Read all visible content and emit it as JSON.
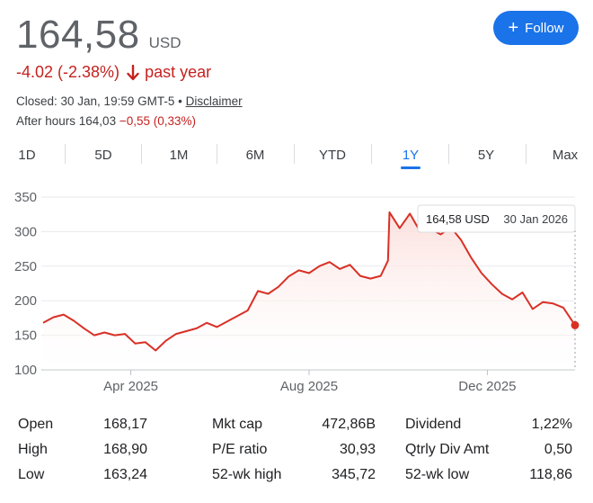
{
  "header": {
    "price": "164,58",
    "currency": "USD",
    "change": "-4.02 (-2.38%)",
    "change_period": "past year",
    "change_icon": "arrow-down-icon",
    "closed_text": "Closed: 30 Jan, 19:59 GMT-5 • ",
    "disclaimer": "Disclaimer",
    "after_hours_label": "After hours 164,03 ",
    "after_hours_change": "−0,55 (0,33%)",
    "follow_label": "Follow",
    "negative_color": "#c5221f",
    "accent_color": "#1a73e8"
  },
  "tabs": [
    "1D",
    "5D",
    "1M",
    "6M",
    "YTD",
    "1Y",
    "5Y",
    "Max"
  ],
  "active_tab": "1Y",
  "tooltip": {
    "price": "164,58 USD",
    "date": "30 Jan 2026"
  },
  "stats": [
    {
      "label": "Open",
      "value": "168,17"
    },
    {
      "label": "High",
      "value": "168,90"
    },
    {
      "label": "Low",
      "value": "163,24"
    },
    {
      "label": "Mkt cap",
      "value": "472,86B"
    },
    {
      "label": "P/E ratio",
      "value": "30,93"
    },
    {
      "label": "52-wk high",
      "value": "345,72"
    },
    {
      "label": "Dividend",
      "value": "1,22%"
    },
    {
      "label": "Qtrly Div Amt",
      "value": "0,50"
    },
    {
      "label": "52-wk low",
      "value": "118,86"
    }
  ],
  "chart_data": {
    "type": "area",
    "title": "",
    "xlabel": "",
    "ylabel": "",
    "ylim": [
      100,
      350
    ],
    "y_ticks": [
      "100",
      "150",
      "200",
      "250",
      "300",
      "350"
    ],
    "x_ticks": [
      "Apr 2025",
      "Aug 2025",
      "Dec 2025"
    ],
    "x_tick_dates": [
      "2025-04-01",
      "2025-08-01",
      "2025-12-01"
    ],
    "x_range": [
      "2025-01-31",
      "2026-01-30"
    ],
    "grid": true,
    "line_color": "#d93025",
    "series": [
      {
        "values": [
          [
            "2025-01-31",
            168
          ],
          [
            "2025-02-07",
            176
          ],
          [
            "2025-02-14",
            180
          ],
          [
            "2025-02-21",
            171
          ],
          [
            "2025-02-28",
            160
          ],
          [
            "2025-03-07",
            150
          ],
          [
            "2025-03-14",
            154
          ],
          [
            "2025-03-21",
            150
          ],
          [
            "2025-03-28",
            152
          ],
          [
            "2025-04-04",
            138
          ],
          [
            "2025-04-11",
            140
          ],
          [
            "2025-04-18",
            128
          ],
          [
            "2025-04-25",
            142
          ],
          [
            "2025-05-02",
            152
          ],
          [
            "2025-05-09",
            156
          ],
          [
            "2025-05-16",
            160
          ],
          [
            "2025-05-23",
            168
          ],
          [
            "2025-05-30",
            162
          ],
          [
            "2025-06-06",
            170
          ],
          [
            "2025-06-13",
            178
          ],
          [
            "2025-06-20",
            186
          ],
          [
            "2025-06-27",
            214
          ],
          [
            "2025-07-04",
            210
          ],
          [
            "2025-07-11",
            220
          ],
          [
            "2025-07-18",
            235
          ],
          [
            "2025-07-25",
            244
          ],
          [
            "2025-08-01",
            240
          ],
          [
            "2025-08-08",
            250
          ],
          [
            "2025-08-15",
            256
          ],
          [
            "2025-08-22",
            246
          ],
          [
            "2025-08-29",
            252
          ],
          [
            "2025-09-05",
            236
          ],
          [
            "2025-09-12",
            232
          ],
          [
            "2025-09-19",
            236
          ],
          [
            "2025-09-24",
            258
          ],
          [
            "2025-09-25",
            328
          ],
          [
            "2025-10-02",
            305
          ],
          [
            "2025-10-09",
            326
          ],
          [
            "2025-10-16",
            300
          ],
          [
            "2025-10-23",
            304
          ],
          [
            "2025-10-30",
            296
          ],
          [
            "2025-11-06",
            306
          ],
          [
            "2025-11-13",
            288
          ],
          [
            "2025-11-20",
            262
          ],
          [
            "2025-11-27",
            240
          ],
          [
            "2025-12-04",
            224
          ],
          [
            "2025-12-11",
            210
          ],
          [
            "2025-12-18",
            202
          ],
          [
            "2025-12-25",
            212
          ],
          [
            "2026-01-01",
            188
          ],
          [
            "2026-01-08",
            198
          ],
          [
            "2026-01-15",
            196
          ],
          [
            "2026-01-22",
            190
          ],
          [
            "2026-01-30",
            164.58
          ]
        ]
      }
    ]
  }
}
